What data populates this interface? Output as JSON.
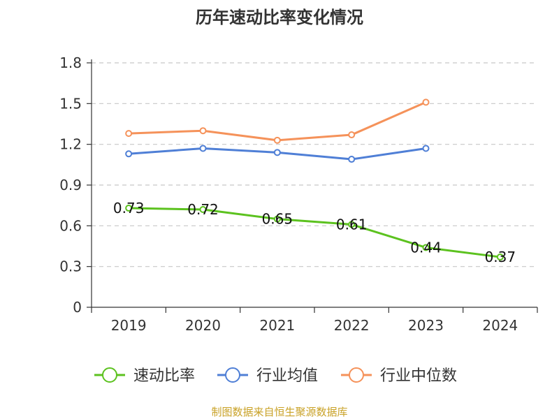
{
  "chart_data": {
    "type": "line",
    "title": "历年速动比率变化情况",
    "xlabel": "",
    "ylabel": "",
    "categories": [
      "2019",
      "2020",
      "2021",
      "2022",
      "2023",
      "2024"
    ],
    "ylim": [
      0,
      1.8
    ],
    "yticks": [
      "0",
      "0.3",
      "0.6",
      "0.9",
      "1.2",
      "1.5",
      "1.8"
    ],
    "grid": true,
    "legend_position": "bottom",
    "series": [
      {
        "name": "速动比率",
        "color": "#5cc21f",
        "values": [
          0.73,
          0.72,
          0.65,
          0.61,
          0.44,
          0.37
        ],
        "labels": [
          "0.73",
          "0.72",
          "0.65",
          "0.61",
          "0.44",
          "0.37"
        ]
      },
      {
        "name": "行业均值",
        "color": "#4f7fd6",
        "values": [
          1.13,
          1.17,
          1.14,
          1.09,
          1.17,
          null
        ]
      },
      {
        "name": "行业中位数",
        "color": "#f5925a",
        "values": [
          1.28,
          1.3,
          1.23,
          1.27,
          1.51,
          null
        ]
      }
    ]
  },
  "source": "制图数据来自恒生聚源数据库"
}
